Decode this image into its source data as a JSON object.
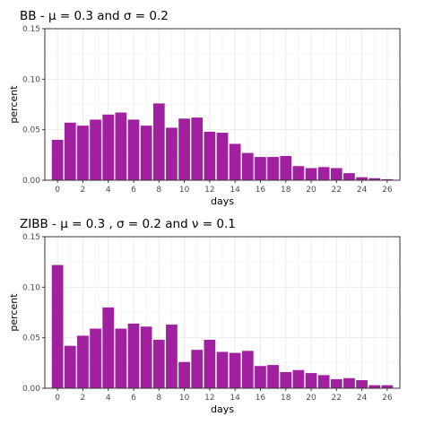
{
  "chart_data": [
    {
      "type": "bar",
      "title": "BB -  μ = 0.3 and σ = 0.2",
      "xlabel": "days",
      "ylabel": "percent",
      "xlim": [
        -1,
        27
      ],
      "ylim": [
        0,
        0.15
      ],
      "x_ticks": [
        "0",
        "2",
        "4",
        "6",
        "8",
        "10",
        "12",
        "14",
        "16",
        "18",
        "20",
        "22",
        "24",
        "26"
      ],
      "y_ticks": [
        "0.00",
        "0.05",
        "0.10",
        "0.15"
      ],
      "categories": [
        0,
        1,
        2,
        3,
        4,
        5,
        6,
        7,
        8,
        9,
        10,
        11,
        12,
        13,
        14,
        15,
        16,
        17,
        18,
        19,
        20,
        21,
        22,
        23,
        24,
        25,
        26
      ],
      "values": [
        0.04,
        0.057,
        0.054,
        0.06,
        0.065,
        0.067,
        0.06,
        0.054,
        0.076,
        0.052,
        0.061,
        0.062,
        0.048,
        0.047,
        0.036,
        0.027,
        0.023,
        0.023,
        0.024,
        0.014,
        0.012,
        0.013,
        0.012,
        0.007,
        0.003,
        0.002,
        0.001
      ],
      "bar_color": "#a020a0",
      "grid": true,
      "legend": "none"
    },
    {
      "type": "bar",
      "title": "ZIBB -  μ = 0.3 , σ = 0.2 and ν = 0.1",
      "xlabel": "days",
      "ylabel": "percent",
      "xlim": [
        -1,
        27
      ],
      "ylim": [
        0,
        0.15
      ],
      "x_ticks": [
        "0",
        "2",
        "4",
        "6",
        "8",
        "10",
        "12",
        "14",
        "16",
        "18",
        "20",
        "22",
        "24",
        "26"
      ],
      "y_ticks": [
        "0.00",
        "0.05",
        "0.10",
        "0.15"
      ],
      "categories": [
        0,
        1,
        2,
        3,
        4,
        5,
        6,
        7,
        8,
        9,
        10,
        11,
        12,
        13,
        14,
        15,
        16,
        17,
        18,
        19,
        20,
        21,
        22,
        23,
        24,
        25,
        26
      ],
      "values": [
        0.122,
        0.042,
        0.052,
        0.059,
        0.08,
        0.059,
        0.064,
        0.061,
        0.048,
        0.063,
        0.026,
        0.038,
        0.048,
        0.036,
        0.035,
        0.037,
        0.022,
        0.023,
        0.016,
        0.018,
        0.015,
        0.013,
        0.009,
        0.01,
        0.008,
        0.003,
        0.003
      ],
      "bar_color": "#a020a0",
      "grid": true,
      "legend": "none"
    }
  ]
}
